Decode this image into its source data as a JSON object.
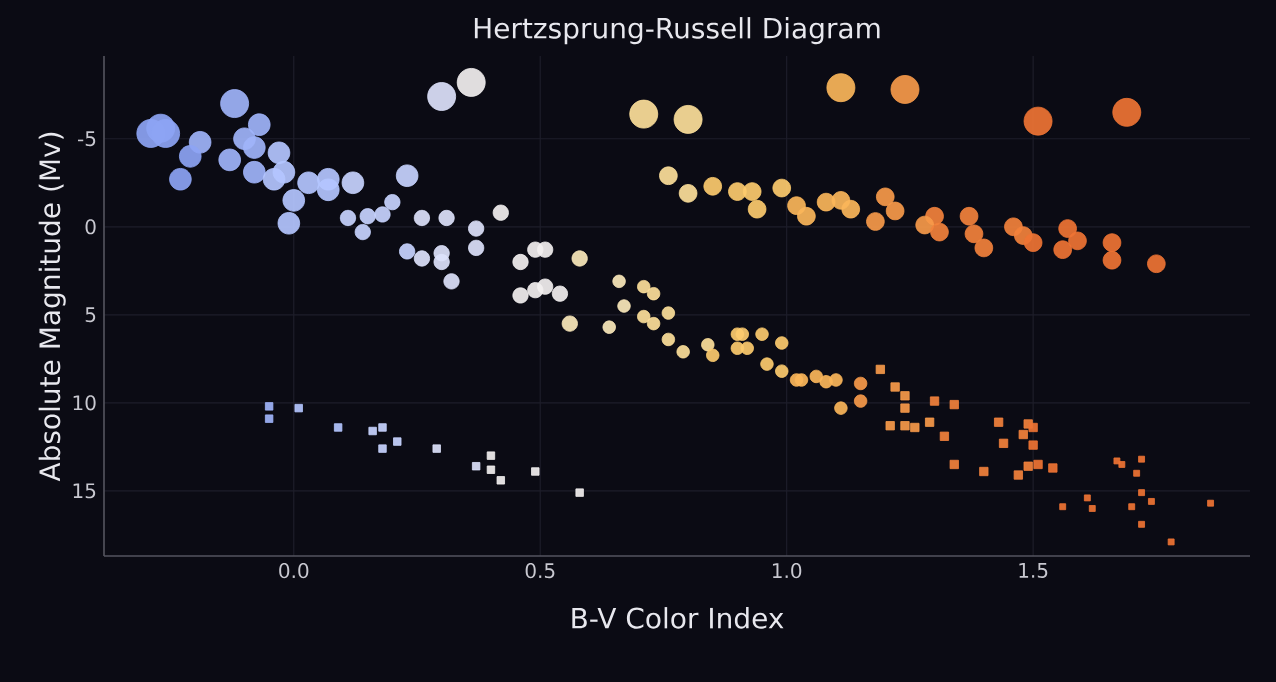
{
  "chart_data": {
    "type": "bubble",
    "title": "Hertzsprung-Russell Diagram",
    "xlabel": "B-V Color Index",
    "ylabel": "Absolute Magnitude (Mv)",
    "xlim": [
      -0.385,
      1.94
    ],
    "ylim": [
      18.7,
      -9.7
    ],
    "xticks": [
      {
        "value": 0,
        "label": "0.0"
      },
      {
        "value": 0.5,
        "label": "0.5"
      },
      {
        "value": 1,
        "label": "1.0"
      },
      {
        "value": 1.5,
        "label": "1.5"
      }
    ],
    "yticks": [
      -5,
      0,
      5,
      10,
      15
    ],
    "grid": true,
    "series": [
      {
        "marker": "circle",
        "x": [
          -0.29,
          -0.27,
          -0.26,
          -0.12,
          0.3,
          0.36,
          0.71,
          0.8,
          1.11,
          1.24,
          1.51,
          1.69
        ],
        "values": [
          -5.3,
          -5.6,
          -5.3,
          -7.0,
          -7.4,
          -8.2,
          -6.4,
          -6.1,
          -7.9,
          -7.8,
          -6.0,
          -6.5
        ],
        "sizes": [
          1,
          1,
          1,
          1,
          1,
          1,
          1,
          1,
          1,
          1,
          1,
          1
        ],
        "colors": [
          "#8da4f4",
          "#8da4f4",
          "#8da4f4",
          "#9fb4fa",
          "#dde2fb",
          "#f3f0f0",
          "#fde09a",
          "#fde09a",
          "#fbb65a",
          "#f79a4a",
          "#ef7434",
          "#ef7434"
        ]
      },
      {
        "marker": "circle",
        "x": [
          -0.19,
          -0.07,
          -0.1,
          -0.08,
          -0.21,
          -0.23,
          -0.13,
          -0.08,
          -0.04,
          -0.03,
          -0.02,
          0.0,
          0.03,
          0.07,
          0.07,
          0.12,
          0.23,
          -0.01
        ],
        "values": [
          -4.8,
          -5.8,
          -5.0,
          -4.5,
          -4.0,
          -2.7,
          -3.8,
          -3.1,
          -2.7,
          -4.2,
          -3.1,
          -1.5,
          -2.5,
          -2.7,
          -2.1,
          -2.5,
          -2.9,
          -0.2
        ],
        "sizes": [
          0.6,
          0.6,
          0.6,
          0.6,
          0.6,
          0.6,
          0.6,
          0.6,
          0.6,
          0.6,
          0.6,
          0.6,
          0.6,
          0.6,
          0.6,
          0.6,
          0.6,
          0.6
        ],
        "colors": [
          "#9fb4fa",
          "#9fb4fa",
          "#9fb4fa",
          "#9fb4fa",
          "#8da4f4",
          "#8da4f4",
          "#9fb4fa",
          "#9fb4fa",
          "#b4c6ff",
          "#b4c6ff",
          "#b4c6ff",
          "#b4c6ff",
          "#b4c6ff",
          "#b4c6ff",
          "#b4c6ff",
          "#c8d4ff",
          "#c8d4ff",
          "#b4c6ff"
        ]
      },
      {
        "marker": "circle",
        "x": [
          0.76,
          0.8,
          0.85,
          0.9,
          0.93,
          0.94,
          0.99,
          1.02,
          1.04,
          1.08,
          1.11,
          1.13,
          1.2,
          1.22,
          1.18,
          1.3,
          1.28,
          1.31,
          1.37,
          1.38,
          1.4,
          1.46,
          1.48,
          1.5,
          1.57,
          1.59,
          1.56,
          1.66,
          1.66,
          1.75
        ],
        "values": [
          -2.9,
          -1.9,
          -2.3,
          -2.0,
          -2.0,
          -1.0,
          -2.2,
          -1.2,
          -0.6,
          -1.4,
          -1.5,
          -1.0,
          -1.7,
          -0.9,
          -0.3,
          -0.6,
          -0.1,
          0.3,
          -0.6,
          0.4,
          1.2,
          0.0,
          0.5,
          0.9,
          0.1,
          0.8,
          1.3,
          0.9,
          1.9,
          2.1
        ],
        "sizes": [
          0.4,
          0.4,
          0.4,
          0.4,
          0.4,
          0.4,
          0.4,
          0.4,
          0.4,
          0.4,
          0.4,
          0.4,
          0.4,
          0.4,
          0.4,
          0.4,
          0.4,
          0.4,
          0.4,
          0.4,
          0.4,
          0.4,
          0.4,
          0.4,
          0.4,
          0.4,
          0.4,
          0.4,
          0.4,
          0.4
        ],
        "colors": [
          "#fde09a",
          "#fde09a",
          "#fdcb6e",
          "#fdcb6e",
          "#fdcb6e",
          "#fdcb6e",
          "#fdcb6e",
          "#fbb65a",
          "#fbb65a",
          "#fbb65a",
          "#fbb65a",
          "#fbb65a",
          "#f79a4a",
          "#f79a4a",
          "#f79a4a",
          "#f3823c",
          "#f79a4a",
          "#f3823c",
          "#f3823c",
          "#f3823c",
          "#f3823c",
          "#f3823c",
          "#f3823c",
          "#ef7434",
          "#ef7434",
          "#ef7434",
          "#ef7434",
          "#ef7434",
          "#ef7434",
          "#ef7434"
        ]
      },
      {
        "marker": "circle",
        "x": [
          0.11,
          0.14,
          0.15,
          0.18,
          0.2,
          0.26,
          0.31,
          0.23,
          0.26,
          0.3,
          0.3,
          0.32,
          0.37,
          0.37,
          0.42,
          0.46,
          0.49,
          0.51,
          0.58,
          0.46,
          0.49,
          0.51,
          0.54,
          0.56
        ],
        "values": [
          -0.5,
          0.3,
          -0.6,
          -0.7,
          -1.4,
          -0.5,
          -0.5,
          1.4,
          1.8,
          1.5,
          2.0,
          3.1,
          0.1,
          1.2,
          -0.8,
          2.0,
          1.3,
          1.3,
          1.8,
          3.9,
          3.6,
          3.4,
          3.8,
          5.5
        ],
        "sizes": [
          0.3,
          0.3,
          0.3,
          0.3,
          0.3,
          0.3,
          0.3,
          0.3,
          0.3,
          0.3,
          0.3,
          0.3,
          0.3,
          0.3,
          0.3,
          0.3,
          0.3,
          0.3,
          0.3,
          0.3,
          0.3,
          0.3,
          0.3,
          0.3
        ],
        "colors": [
          "#c8d4ff",
          "#c8d4ff",
          "#c8d4ff",
          "#c8d4ff",
          "#c8d4ff",
          "#dde2fb",
          "#dde2fb",
          "#c8d4ff",
          "#dde2fb",
          "#dde2fb",
          "#dde2fb",
          "#dde2fb",
          "#dde2fb",
          "#dde2fb",
          "#f3f0f0",
          "#f3f0f0",
          "#f3f0f0",
          "#f3f0f0",
          "#fbe9bb",
          "#f3f0f0",
          "#f3f0f0",
          "#f3f0f0",
          "#f3f0f0",
          "#fbe9bb"
        ]
      },
      {
        "marker": "circle",
        "x": [
          0.66,
          0.67,
          0.71,
          0.73,
          0.71,
          0.76,
          0.73,
          0.64,
          0.76,
          0.79,
          0.84,
          0.85,
          0.9,
          0.91,
          0.9,
          0.92,
          0.95,
          0.99,
          0.96,
          0.99,
          1.02,
          1.03,
          1.06,
          1.08,
          1.1,
          1.15,
          1.15,
          1.11
        ],
        "values": [
          3.1,
          4.5,
          3.4,
          3.8,
          5.1,
          4.9,
          5.5,
          5.7,
          6.4,
          7.1,
          6.7,
          7.3,
          6.1,
          6.1,
          6.9,
          6.9,
          6.1,
          6.6,
          7.8,
          8.2,
          8.7,
          8.7,
          8.5,
          8.8,
          8.7,
          8.9,
          9.9,
          10.3
        ],
        "sizes": [
          0.2,
          0.2,
          0.2,
          0.2,
          0.2,
          0.2,
          0.2,
          0.2,
          0.2,
          0.2,
          0.2,
          0.2,
          0.2,
          0.2,
          0.2,
          0.2,
          0.2,
          0.2,
          0.2,
          0.2,
          0.2,
          0.2,
          0.2,
          0.2,
          0.2,
          0.2,
          0.2,
          0.2
        ],
        "colors": [
          "#fbe9bb",
          "#fbe9bb",
          "#fde09a",
          "#fde09a",
          "#fde09a",
          "#fde09a",
          "#fde09a",
          "#fbe9bb",
          "#fde09a",
          "#fde09a",
          "#fde09a",
          "#fdcb6e",
          "#fdcb6e",
          "#fdcb6e",
          "#fdcb6e",
          "#fdcb6e",
          "#fdcb6e",
          "#fdcb6e",
          "#fdcb6e",
          "#fdcb6e",
          "#fbb65a",
          "#fbb65a",
          "#fbb65a",
          "#fbb65a",
          "#fbb65a",
          "#f79a4a",
          "#f79a4a",
          "#fbb65a"
        ]
      },
      {
        "marker": "square",
        "x": [
          1.19,
          1.22,
          1.24,
          1.24,
          1.3,
          1.34,
          1.21,
          1.24,
          1.26,
          1.29,
          1.32,
          1.34,
          1.4,
          1.43,
          1.44,
          1.47,
          1.49,
          1.5,
          1.48,
          1.5,
          1.49,
          1.51,
          1.54
        ],
        "values": [
          8.1,
          9.1,
          9.6,
          10.3,
          9.9,
          10.1,
          11.3,
          11.3,
          11.4,
          11.1,
          11.9,
          13.5,
          13.9,
          11.1,
          12.3,
          14.1,
          11.2,
          11.4,
          11.8,
          12.4,
          13.6,
          13.5,
          13.7
        ],
        "sizes": [
          0.1,
          0.1,
          0.1,
          0.1,
          0.1,
          0.1,
          0.1,
          0.1,
          0.1,
          0.1,
          0.1,
          0.1,
          0.1,
          0.1,
          0.1,
          0.1,
          0.1,
          0.1,
          0.1,
          0.1,
          0.1,
          0.1,
          0.1
        ],
        "colors": [
          "#f79a4a",
          "#f79a4a",
          "#f79a4a",
          "#f79a4a",
          "#f3823c",
          "#f3823c",
          "#f79a4a",
          "#f79a4a",
          "#f79a4a",
          "#f79a4a",
          "#f3823c",
          "#f3823c",
          "#f3823c",
          "#f3823c",
          "#f3823c",
          "#f3823c",
          "#f3823c",
          "#ef7434",
          "#f3823c",
          "#ef7434",
          "#f3823c",
          "#ef7434",
          "#ef7434"
        ]
      },
      {
        "marker": "square",
        "x": [
          1.56,
          1.61,
          1.62,
          1.67,
          1.68,
          1.72,
          1.71,
          1.72,
          1.74,
          1.7,
          1.72,
          1.78,
          1.86
        ],
        "values": [
          15.9,
          15.4,
          16.0,
          13.3,
          13.5,
          13.2,
          14.0,
          15.1,
          15.6,
          15.9,
          16.9,
          17.9,
          15.7
        ],
        "sizes": [
          0.05,
          0.05,
          0.05,
          0.05,
          0.05,
          0.05,
          0.05,
          0.05,
          0.05,
          0.05,
          0.05,
          0.05,
          0.05
        ],
        "colors": [
          "#ef7434",
          "#ef7434",
          "#ef7434",
          "#ef7434",
          "#ef7434",
          "#ef7434",
          "#ef7434",
          "#ef7434",
          "#ef7434",
          "#ef7434",
          "#ef7434",
          "#ef7434",
          "#ef7434"
        ]
      },
      {
        "marker": "square",
        "x": [
          -0.05,
          -0.05,
          0.01,
          0.09,
          0.16,
          0.18,
          0.18,
          0.21,
          0.29,
          0.37,
          0.4,
          0.4,
          0.42,
          0.49,
          0.58
        ],
        "values": [
          10.2,
          10.9,
          10.3,
          11.4,
          11.6,
          11.4,
          12.6,
          12.2,
          12.6,
          13.6,
          13.0,
          13.8,
          14.4,
          13.9,
          15.1
        ],
        "sizes": [
          0.08,
          0.08,
          0.08,
          0.08,
          0.08,
          0.08,
          0.08,
          0.08,
          0.08,
          0.08,
          0.08,
          0.08,
          0.08,
          0.08,
          0.08
        ],
        "colors": [
          "#9fb4fa",
          "#9fb4fa",
          "#b4c6ff",
          "#b4c6ff",
          "#c8d4ff",
          "#c8d4ff",
          "#c8d4ff",
          "#c8d4ff",
          "#dde2fb",
          "#dde2fb",
          "#f3f0f0",
          "#f3f0f0",
          "#f3f0f0",
          "#f3f0f0",
          "#f3f0f0"
        ]
      }
    ]
  }
}
